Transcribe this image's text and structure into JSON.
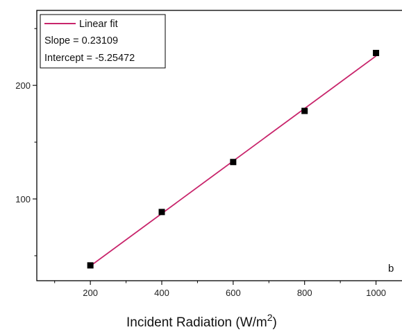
{
  "chart_data": {
    "type": "scatter",
    "xlabel": "Incident Radiation (W/m",
    "xlabel_sup": "2",
    "xlabel_close": ")",
    "ylabel": "",
    "panel_label": "b",
    "xlim": [
      50,
      1100
    ],
    "ylim": [
      28,
      266
    ],
    "x_ticks": [
      200,
      400,
      600,
      800,
      1000
    ],
    "y_ticks": [
      100,
      200
    ],
    "grid": false,
    "legend_position": "top-left",
    "series": [
      {
        "name": "",
        "marker": "square",
        "color": "#000000",
        "x": [
          200,
          400,
          600,
          800,
          1000
        ],
        "y": [
          41.5,
          88.5,
          132.5,
          177.5,
          228.5
        ]
      }
    ],
    "fit": {
      "label": "Linear fit",
      "slope_text": "Slope = 0.23109",
      "intercept_text": "Intercept = -5.25472",
      "slope": 0.23109,
      "intercept": -5.25472,
      "x_range": [
        200,
        1000
      ],
      "color": "#c8246b"
    }
  }
}
